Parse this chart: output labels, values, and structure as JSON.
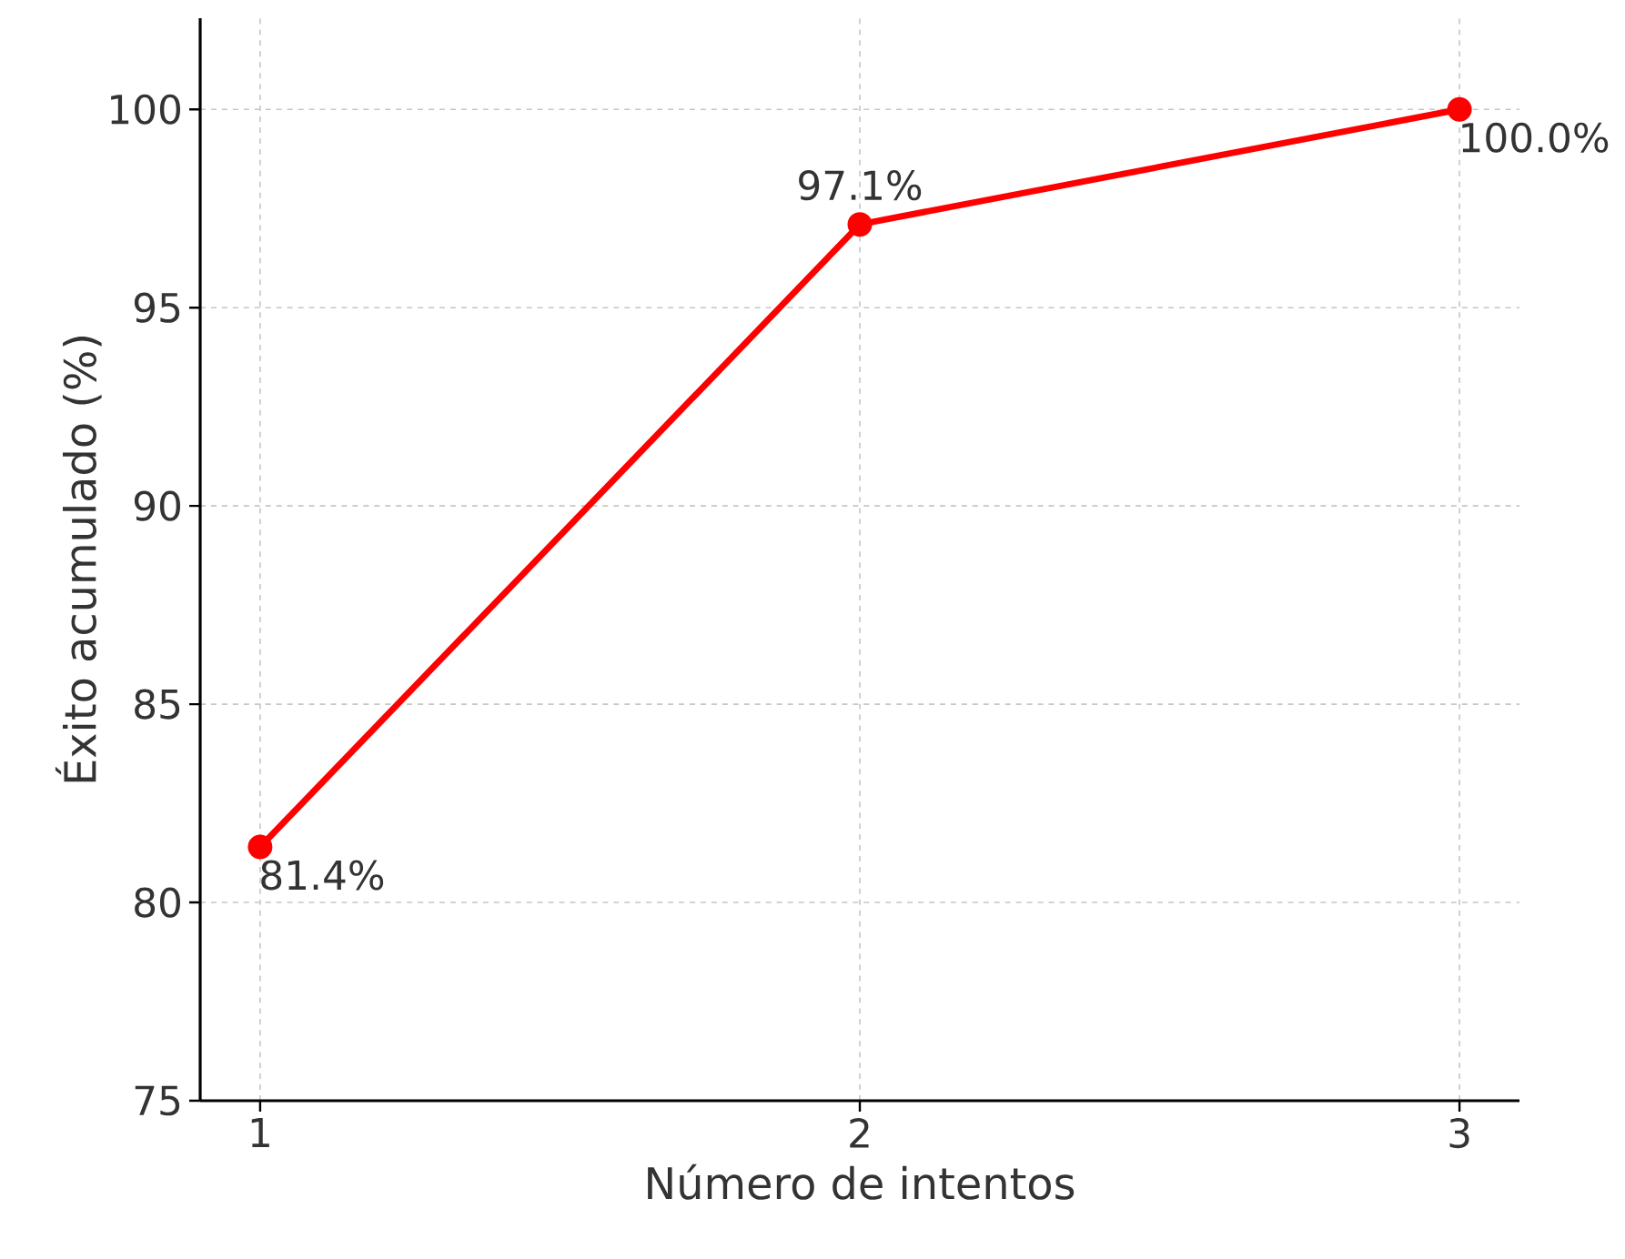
{
  "chart_data": {
    "type": "line",
    "xlabel": "Número de intentos",
    "ylabel": "Éxito acumulado (%)",
    "x": [
      1,
      2,
      3
    ],
    "series": [
      {
        "color": "#ff0000",
        "values": [
          81.4,
          97.1,
          100.0
        ],
        "value_labels": [
          "81.4%",
          "97.1%",
          "100.0%"
        ]
      }
    ],
    "xlim": [
      0.9,
      3.1
    ],
    "ylim": [
      75,
      102.3
    ],
    "xticks": [
      1,
      2,
      3
    ],
    "yticks": [
      75,
      80,
      85,
      90,
      95,
      100
    ],
    "grid": true,
    "marker": "circle",
    "line_style": "solid"
  }
}
